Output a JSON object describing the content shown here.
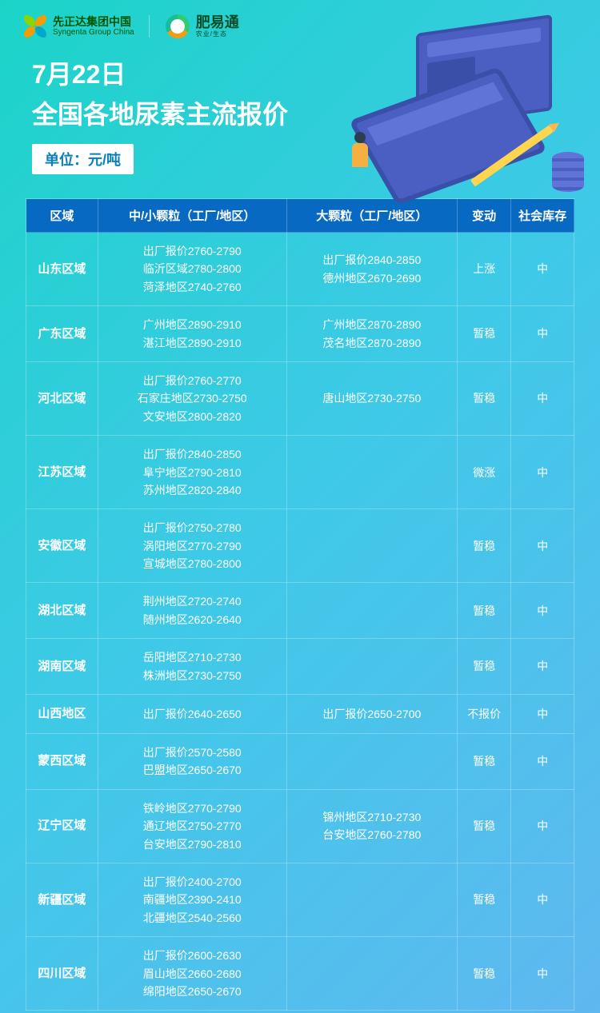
{
  "brand1": {
    "cn": "先正达集团中国",
    "en": "Syngenta Group China"
  },
  "brand2": {
    "cn": "肥易通",
    "sub": "农业/生态"
  },
  "title": {
    "date": "7月22日",
    "main": "全国各地尿素主流报价",
    "unit": "单位：元/吨"
  },
  "columns": {
    "region": "区域",
    "small": "中/小颗粒（工厂/地区）",
    "large": "大颗粒（工厂/地区）",
    "change": "变动",
    "stock": "社会库存"
  },
  "rows": [
    {
      "region": "山东区域",
      "small": [
        "出厂报价2760-2790",
        "临沂区域2780-2800",
        "菏泽地区2740-2760"
      ],
      "large": [
        "出厂报价2840-2850",
        "德州地区2670-2690"
      ],
      "change": "上涨",
      "stock": "中"
    },
    {
      "region": "广东区域",
      "small": [
        "广州地区2890-2910",
        "湛江地区2890-2910"
      ],
      "large": [
        "广州地区2870-2890",
        "茂名地区2870-2890"
      ],
      "change": "暂稳",
      "stock": "中"
    },
    {
      "region": "河北区域",
      "small": [
        "出厂报价2760-2770",
        "石家庄地区2730-2750",
        "文安地区2800-2820"
      ],
      "large": [
        "唐山地区2730-2750"
      ],
      "change": "暂稳",
      "stock": "中"
    },
    {
      "region": "江苏区域",
      "small": [
        "出厂报价2840-2850",
        "阜宁地区2790-2810",
        "苏州地区2820-2840"
      ],
      "large": [],
      "change": "微涨",
      "stock": "中"
    },
    {
      "region": "安徽区域",
      "small": [
        "出厂报价2750-2780",
        "涡阳地区2770-2790",
        "宣城地区2780-2800"
      ],
      "large": [],
      "change": "暂稳",
      "stock": "中"
    },
    {
      "region": "湖北区域",
      "small": [
        "荆州地区2720-2740",
        "随州地区2620-2640"
      ],
      "large": [],
      "change": "暂稳",
      "stock": "中"
    },
    {
      "region": "湖南区域",
      "small": [
        "岳阳地区2710-2730",
        "株洲地区2730-2750"
      ],
      "large": [],
      "change": "暂稳",
      "stock": "中"
    },
    {
      "region": "山西地区",
      "small": [
        "出厂报价2640-2650"
      ],
      "large": [
        "出厂报价2650-2700"
      ],
      "change": "不报价",
      "stock": "中"
    },
    {
      "region": "蒙西区域",
      "small": [
        "出厂报价2570-2580",
        "巴盟地区2650-2670"
      ],
      "large": [],
      "change": "暂稳",
      "stock": "中"
    },
    {
      "region": "辽宁区域",
      "small": [
        "铁岭地区2770-2790",
        "通辽地区2750-2770",
        "台安地区2790-2810"
      ],
      "large": [
        "锦州地区2710-2730",
        "台安地区2760-2780"
      ],
      "change": "暂稳",
      "stock": "中"
    },
    {
      "region": "新疆区域",
      "small": [
        "出厂报价2400-2700",
        "南疆地区2390-2410",
        "北疆地区2540-2560"
      ],
      "large": [],
      "change": "暂稳",
      "stock": "中"
    },
    {
      "region": "四川区域",
      "small": [
        "出厂报价2600-2630",
        "眉山地区2660-2680",
        "绵阳地区2650-2670"
      ],
      "large": [],
      "change": "暂稳",
      "stock": "中"
    }
  ],
  "style": {
    "header_bg": "#0869c2",
    "text_color": "#ffffff",
    "border_color": "rgba(255,255,255,0.25)",
    "badge_bg": "#ffffff",
    "badge_color": "#0a7fb8"
  }
}
